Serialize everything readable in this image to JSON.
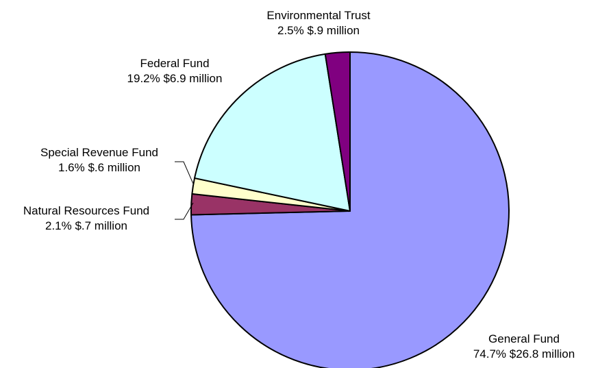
{
  "chart_data": {
    "type": "pie",
    "slices": [
      {
        "name": "General Fund",
        "percent_label": "74.7% $26.8 million",
        "percent": 74.7,
        "value_millions": 26.8,
        "color": "#9999ff"
      },
      {
        "name": "Natural Resources Fund",
        "percent_label": "2.1% $.7 million",
        "percent": 2.1,
        "value_millions": 0.7,
        "color": "#993366"
      },
      {
        "name": "Special Revenue Fund",
        "percent_label": "1.6% $.6 million",
        "percent": 1.6,
        "value_millions": 0.6,
        "color": "#ffffcc"
      },
      {
        "name": "Federal Fund",
        "percent_label": "19.2% $6.9 million",
        "percent": 19.2,
        "value_millions": 6.9,
        "color": "#ccffff"
      },
      {
        "name": "Environmental Trust",
        "percent_label": "2.5% $.9 million",
        "percent": 2.5,
        "value_millions": 0.9,
        "color": "#800080"
      }
    ]
  }
}
